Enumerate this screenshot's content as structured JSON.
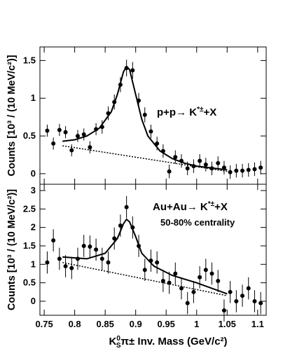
{
  "chart_data": [
    {
      "type": "scatter",
      "annotation": {
        "text": "p+p→ K",
        "sup": "*±",
        "tail": "+X"
      },
      "y_label": "Counts [10³ / (10 MeV/c²)]",
      "xlim": [
        0.743,
        1.114
      ],
      "xticks": [
        0.75,
        0.8,
        0.85,
        0.9,
        0.95,
        1,
        1.05,
        1.1
      ],
      "ylim": [
        -0.14,
        1.68
      ],
      "yticks": [
        0,
        0.5,
        1,
        1.5
      ],
      "color": "#000000",
      "x": [
        0.755,
        0.765,
        0.775,
        0.785,
        0.795,
        0.805,
        0.815,
        0.825,
        0.835,
        0.845,
        0.855,
        0.865,
        0.875,
        0.885,
        0.895,
        0.905,
        0.915,
        0.925,
        0.935,
        0.945,
        0.955,
        0.965,
        0.975,
        0.985,
        0.995,
        1.005,
        1.015,
        1.025,
        1.035,
        1.045,
        1.055,
        1.065,
        1.075,
        1.085,
        1.095,
        1.105
      ],
      "values": [
        0.57,
        0.4,
        0.58,
        0.55,
        0.31,
        0.5,
        0.52,
        0.35,
        0.59,
        0.62,
        0.8,
        0.95,
        1.18,
        1.4,
        1.37,
        0.97,
        0.78,
        0.56,
        0.4,
        0.3,
        0.03,
        0.22,
        0.17,
        0.07,
        0.1,
        0.17,
        0.12,
        0.07,
        0.14,
        0.08,
        0.02,
        0.04,
        0.04,
        0.05,
        0.06,
        0.08
      ],
      "errors": [
        0.08,
        0.08,
        0.08,
        0.08,
        0.08,
        0.08,
        0.08,
        0.08,
        0.08,
        0.09,
        0.09,
        0.1,
        0.1,
        0.11,
        0.11,
        0.1,
        0.1,
        0.09,
        0.09,
        0.09,
        0.09,
        0.09,
        0.09,
        0.09,
        0.09,
        0.09,
        0.09,
        0.09,
        0.09,
        0.09,
        0.09,
        0.09,
        0.09,
        0.09,
        0.09,
        0.09
      ],
      "fit": {
        "x": [
          0.78,
          0.8,
          0.82,
          0.84,
          0.86,
          0.87,
          0.88,
          0.885,
          0.89,
          0.9,
          0.91,
          0.92,
          0.94,
          0.96,
          0.98,
          1.0,
          1.05
        ],
        "values": [
          0.43,
          0.45,
          0.5,
          0.6,
          0.82,
          1.05,
          1.35,
          1.42,
          1.38,
          1.05,
          0.72,
          0.5,
          0.3,
          0.2,
          0.14,
          0.1,
          0.05
        ]
      },
      "background": {
        "x": [
          0.78,
          1.05
        ],
        "values": [
          0.37,
          0.03
        ]
      }
    },
    {
      "type": "scatter",
      "annotation": {
        "text": "Au+Au→ K",
        "sup": "*±",
        "tail": "+X"
      },
      "annotation2": "50-80% centrality",
      "y_label": "Counts [10³ / (10 MeV/c²)]",
      "x_label": {
        "base": "K",
        "sup": "0",
        "sub": "S",
        "rest": "π± Inv. Mass (GeV/c²)"
      },
      "xlim": [
        0.743,
        1.114
      ],
      "xticks": [
        0.75,
        0.8,
        0.85,
        0.9,
        0.95,
        1,
        1.05,
        1.1
      ],
      "ylim": [
        -0.38,
        3.17
      ],
      "yticks": [
        0,
        0.5,
        1,
        1.5,
        2,
        2.5,
        3
      ],
      "color": "#000000",
      "x": [
        0.755,
        0.765,
        0.775,
        0.785,
        0.795,
        0.805,
        0.815,
        0.825,
        0.835,
        0.845,
        0.855,
        0.865,
        0.875,
        0.885,
        0.895,
        0.905,
        0.915,
        0.925,
        0.935,
        0.945,
        0.955,
        0.965,
        0.975,
        0.985,
        0.995,
        1.005,
        1.015,
        1.025,
        1.035,
        1.045,
        1.055,
        1.065,
        1.075,
        1.085,
        1.095,
        1.105
      ],
      "values": [
        1.05,
        1.65,
        1.15,
        0.95,
        0.9,
        1.15,
        1.5,
        1.48,
        1.4,
        1.15,
        1.05,
        1.7,
        2.05,
        2.55,
        2.0,
        1.5,
        0.85,
        1.1,
        1.05,
        0.55,
        0.5,
        0.75,
        0.35,
        -0.05,
        0.25,
        0.65,
        0.85,
        0.75,
        0.55,
        -0.25,
        0.25,
        0,
        0.15,
        0.35,
        0,
        -0.05
      ],
      "errors": [
        0.3,
        0.3,
        0.3,
        0.3,
        0.3,
        0.3,
        0.3,
        0.3,
        0.3,
        0.3,
        0.3,
        0.3,
        0.3,
        0.3,
        0.3,
        0.3,
        0.3,
        0.3,
        0.3,
        0.3,
        0.3,
        0.3,
        0.3,
        0.3,
        0.3,
        0.3,
        0.3,
        0.3,
        0.3,
        0.3,
        0.3,
        0.3,
        0.3,
        0.3,
        0.3,
        0.3
      ],
      "fit": {
        "x": [
          0.78,
          0.82,
          0.85,
          0.87,
          0.88,
          0.885,
          0.89,
          0.9,
          0.91,
          0.93,
          0.96,
          1.0,
          1.05
        ],
        "values": [
          1.2,
          1.15,
          1.3,
          1.7,
          2.1,
          2.22,
          2.15,
          1.75,
          1.3,
          0.95,
          0.7,
          0.5,
          0.2
        ]
      },
      "background": {
        "x": [
          0.78,
          1.05
        ],
        "values": [
          1.05,
          0.15
        ]
      }
    }
  ]
}
